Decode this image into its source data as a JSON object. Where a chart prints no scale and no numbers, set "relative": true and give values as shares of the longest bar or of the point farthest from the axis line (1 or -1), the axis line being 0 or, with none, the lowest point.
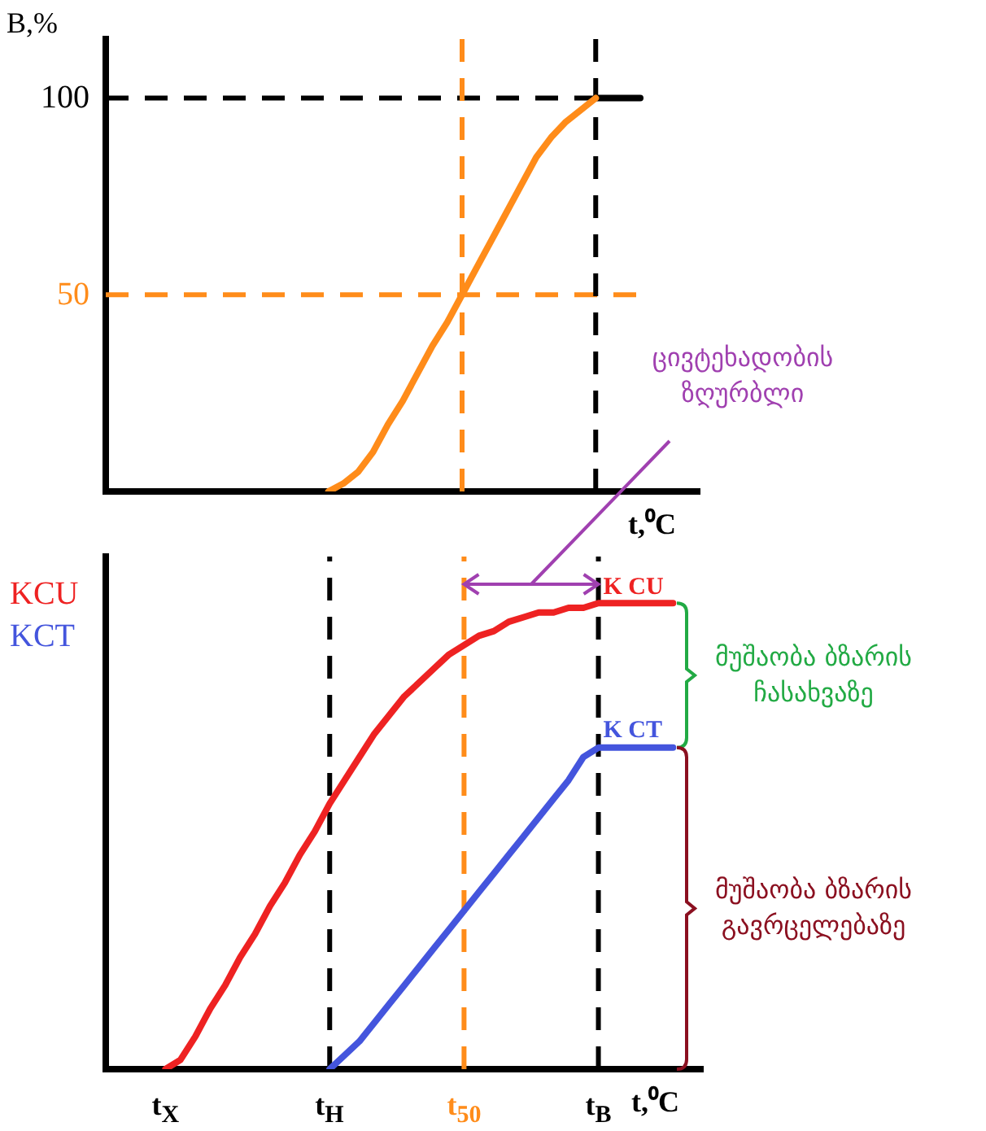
{
  "chart_data": [
    {
      "type": "line",
      "ylabel": "B,%",
      "xlabel": "t,⁰C",
      "categories": [
        null,
        null,
        null,
        null,
        "t$_{Х}$",
        null,
        null,
        null,
        null,
        null,
        null,
        null,
        null,
        null,
        null,
        "t$_{Н}$",
        null,
        null,
        null,
        null,
        null,
        null,
        null,
        null,
        "t$_{50}$",
        null,
        null,
        null,
        null,
        null,
        null,
        null,
        null,
        "t$_{В}$",
        null,
        null,
        null,
        null,
        null,
        null,
        null
      ],
      "ylim": [
        0,
        115
      ],
      "yticks": [
        50,
        100
      ],
      "tick_labels": "y",
      "grid": false,
      "series": [
        {
          "color": "#ff8c1a",
          "values": [
            null,
            null,
            null,
            null,
            null,
            null,
            null,
            null,
            null,
            null,
            null,
            null,
            null,
            null,
            null,
            0,
            2,
            5,
            10,
            17,
            23,
            30,
            37,
            43,
            50,
            57,
            64,
            71,
            78,
            85,
            90,
            94,
            97,
            100,
            null,
            null,
            null,
            null,
            null,
            null,
            null
          ]
        },
        {
          "color": "#000000",
          "values": [
            null,
            null,
            null,
            null,
            null,
            null,
            null,
            null,
            null,
            null,
            null,
            null,
            null,
            null,
            null,
            null,
            null,
            null,
            null,
            null,
            null,
            null,
            null,
            null,
            null,
            null,
            null,
            null,
            null,
            null,
            null,
            null,
            null,
            100,
            100,
            100,
            100,
            null,
            null,
            null,
            null
          ]
        }
      ],
      "ref_lines": [
        {
          "axis": "y",
          "value": 100,
          "color": "#000000",
          "line_style": "dashed"
        },
        {
          "axis": "y",
          "value": 50,
          "color": "#ff8c1a",
          "line_style": "dashed"
        },
        {
          "axis": "x",
          "value": "t$_{50}$",
          "color": "#ff8c1a",
          "line_style": "dashed"
        },
        {
          "axis": "x",
          "value": "t$_{В}$",
          "color": "#000000",
          "line_style": "dashed"
        }
      ]
    },
    {
      "type": "line",
      "xlabel": "t,⁰C",
      "relative": true,
      "categories": [
        null,
        null,
        null,
        null,
        "t$_{Х}$",
        null,
        null,
        null,
        null,
        null,
        null,
        null,
        null,
        null,
        null,
        "t$_{Н}$",
        null,
        null,
        null,
        null,
        null,
        null,
        null,
        null,
        "t$_{50}$",
        null,
        null,
        null,
        null,
        null,
        null,
        null,
        null,
        "t$_{В}$",
        null,
        null,
        null,
        null,
        null,
        null,
        null
      ],
      "tick_labels": "x",
      "legend": "top left",
      "series": [
        {
          "name": "KCU",
          "color": "#ee2222",
          "values": [
            null,
            null,
            null,
            null,
            0,
            0.02,
            0.07,
            0.13,
            0.18,
            0.24,
            0.29,
            0.35,
            0.4,
            0.46,
            0.51,
            0.57,
            0.62,
            0.67,
            0.72,
            0.76,
            0.8,
            0.83,
            0.86,
            0.89,
            0.91,
            0.93,
            0.94,
            0.96,
            0.97,
            0.98,
            0.98,
            0.99,
            0.99,
            1,
            1,
            1,
            1,
            1,
            1,
            null,
            null
          ]
        },
        {
          "name": "KCT",
          "color": "#4455dd",
          "values": [
            null,
            null,
            null,
            null,
            null,
            null,
            null,
            null,
            null,
            null,
            null,
            null,
            null,
            null,
            null,
            0,
            0.03,
            0.06,
            0.1,
            0.14,
            0.18,
            0.22,
            0.26,
            0.3,
            0.34,
            0.38,
            0.42,
            0.46,
            0.5,
            0.54,
            0.58,
            0.62,
            0.67,
            0.69,
            0.69,
            0.69,
            0.69,
            0.69,
            0.69,
            null,
            null
          ]
        }
      ],
      "ref_lines": [
        {
          "axis": "x",
          "value": "t$_{Н}$",
          "color": "#000000",
          "line_style": "dashed"
        },
        {
          "axis": "x",
          "value": "t$_{50}$",
          "color": "#ff8c1a",
          "line_style": "dashed"
        },
        {
          "axis": "x",
          "value": "t$_{В}$",
          "color": "#000000",
          "line_style": "dashed"
        }
      ],
      "annotations": [
        "ცივტეხადობის ზღურბლი",
        "მუშაობა ბზარის ჩასახვაზე",
        "მუშაობა ბზარის გავრცელებაზე",
        {
          "text": "K CU",
          "x": "t$_{В}$",
          "y": 1
        },
        {
          "text": "K CT",
          "x": "t$_{В}$",
          "y": 0.69
        }
      ]
    }
  ]
}
